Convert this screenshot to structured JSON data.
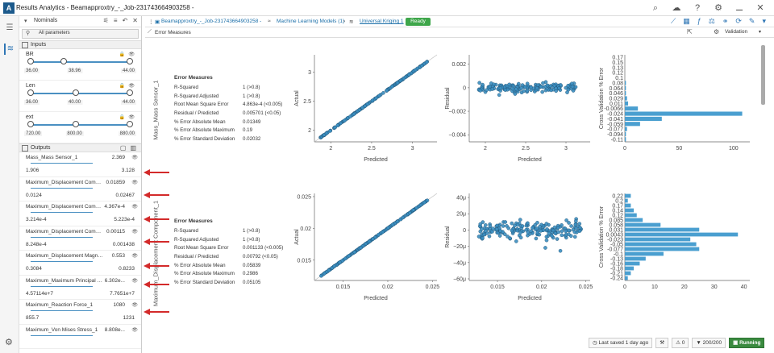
{
  "window": {
    "title": "Results Analytics - Beamapproxtry_-_Job-231743664903258 -"
  },
  "sidebar": {
    "header_label": "Nominals",
    "all_params": "All parameters",
    "inputs_label": "Inputs",
    "outputs_label": "Outputs",
    "inputs": [
      {
        "name": "BR",
        "min": "36.00",
        "cur": "38.96",
        "max": "44.00",
        "frac": 0.37
      },
      {
        "name": "Len",
        "min": "36.00",
        "cur": "40.00",
        "max": "44.00",
        "frac": 0.5
      },
      {
        "name": "ext",
        "min": "720.00",
        "cur": "800.00",
        "max": "880.00",
        "frac": 0.5
      }
    ],
    "outputs": [
      {
        "name": "Mass_Mass Sensor_1",
        "cur": "2.369",
        "min": "1.906",
        "max": "3.128"
      },
      {
        "name": "Maximum_Displacement Compo...",
        "cur": "0.01859",
        "min": "0.0124",
        "max": "0.02467"
      },
      {
        "name": "Maximum_Displacement Compo...",
        "cur": "4.367e-4",
        "min": "3.214e-4",
        "max": "5.223e-4"
      },
      {
        "name": "Maximum_Displacement Compo...",
        "cur": "0.00115",
        "min": "8.248e-4",
        "max": "0.001438"
      },
      {
        "name": "Maximum_Displacement Magnit...",
        "cur": "0.553",
        "min": "0.3084",
        "max": "0.8233"
      },
      {
        "name": "Maximum_Maximum Principal Str...",
        "cur": "6.302e...",
        "min": "4.57114e+7",
        "max": "7.7651e+7"
      },
      {
        "name": "Maximum_Reaction Force_1",
        "cur": "1080",
        "min": "855.7",
        "max": "1231"
      },
      {
        "name": "Maximum_Von Mises Stress_1",
        "cur": "8.808e...",
        "min": "",
        "max": ""
      }
    ]
  },
  "breadcrumb": {
    "job": "Beamapproxtry_-_Job-231743664903258 -",
    "models": "Machine Learning Models (1)",
    "kriging": "Universal Kriging 1",
    "ready": "Ready"
  },
  "subbar": {
    "label": "Error Measures",
    "view": "Validation"
  },
  "status": {
    "saved": "Last saved 1 day ago",
    "zero": "0",
    "count": "200/200",
    "running": "Running"
  },
  "rows": [
    {
      "title": "Mass_Mass Sensor_1",
      "em": {
        "title": "Error Measures",
        "items": [
          {
            "k": "R-Squared",
            "v": "1 (>0.8)"
          },
          {
            "k": "R-Squared Adjusted",
            "v": "1 (>0.8)"
          },
          {
            "k": "Root Mean Square Error",
            "v": "4.863e-4 (<0.005)"
          },
          {
            "k": "Residual / Predicted",
            "v": "0.005701 (<0.05)"
          },
          {
            "k": "% Error Absolute Mean",
            "v": "0.01349"
          },
          {
            "k": "% Error Absolute Maximum",
            "v": "0.19"
          },
          {
            "k": "% Error Standard Deviation",
            "v": "0.02032"
          }
        ]
      },
      "chart_data": [
        {
          "type": "scatter",
          "name": "actual_vs_predicted",
          "xlabel": "Predicted",
          "ylabel": "Actual",
          "xlim": [
            1.8,
            3.3
          ],
          "ylim": [
            1.8,
            3.3
          ],
          "xticks": [
            2,
            2.5,
            3
          ],
          "yticks": [
            2,
            2.5,
            3
          ],
          "diag": true,
          "pattern": "diag"
        },
        {
          "type": "scatter",
          "name": "residual",
          "xlabel": "Predicted",
          "ylabel": "Residual",
          "xlim": [
            1.8,
            3.3
          ],
          "ylim": [
            -0.0046,
            0.0028
          ],
          "xticks": [
            2,
            2.5,
            3
          ],
          "yticks": [
            0.002,
            0,
            -0.002,
            -0.004
          ],
          "ylabels": [
            "0.002",
            "0",
            "−0.002",
            "−0.004"
          ],
          "pattern": "resid1"
        },
        {
          "type": "bar",
          "orientation": "horizontal",
          "xlabel": "",
          "ylabel": "Cross Validation % Error",
          "xlim": [
            0,
            115
          ],
          "xticks": [
            0,
            50,
            100
          ],
          "categories": [
            "0.17",
            "0.15",
            "0.13",
            "0.12",
            "0.1",
            "0.08",
            "0.064",
            "0.046",
            "0.029",
            "0.011",
            "-0.0066",
            "-0.024",
            "-0.041",
            "-0.059",
            "-0.077",
            "-0.094",
            "-0.11"
          ],
          "values": [
            0,
            0,
            0,
            0,
            0,
            1,
            1,
            1,
            2,
            3,
            12,
            108,
            34,
            14,
            2,
            1,
            1
          ]
        }
      ]
    },
    {
      "title": "Maximum_Displacement Component_1",
      "em": {
        "title": "Error Measures",
        "items": [
          {
            "k": "R-Squared",
            "v": "1 (>0.8)"
          },
          {
            "k": "R-Squared Adjusted",
            "v": "1 (>0.8)"
          },
          {
            "k": "Root Mean Square Error",
            "v": "0.001133 (<0.005)"
          },
          {
            "k": "Residual / Predicted",
            "v": "0.00792 (<0.05)"
          },
          {
            "k": "% Error Absolute Mean",
            "v": "0.05839"
          },
          {
            "k": "% Error Absolute Maximum",
            "v": "0.2986"
          },
          {
            "k": "% Error Standard Deviation",
            "v": "0.05105"
          }
        ]
      },
      "chart_data": [
        {
          "type": "scatter",
          "name": "actual_vs_predicted",
          "xlabel": "Predicted",
          "ylabel": "Actual",
          "xlim": [
            0.0118,
            0.0255
          ],
          "ylim": [
            0.0118,
            0.0255
          ],
          "xticks": [
            0.015,
            0.02,
            0.025
          ],
          "yticks": [
            0.015,
            0.02,
            0.025
          ],
          "diag": true,
          "pattern": "diag2"
        },
        {
          "type": "scatter",
          "name": "residual",
          "xlabel": "Predicted",
          "ylabel": "Residual",
          "xlim": [
            0.0118,
            0.0255
          ],
          "ylim": [
            -62,
            45
          ],
          "xticks": [
            0.015,
            0.02,
            0.025
          ],
          "yticks": [
            40,
            20,
            0,
            -20,
            -40,
            -60
          ],
          "ylabels": [
            "40μ",
            "20μ",
            "0",
            "−20μ",
            "−40μ",
            "−60μ"
          ],
          "pattern": "resid2"
        },
        {
          "type": "bar",
          "orientation": "horizontal",
          "xlabel": "",
          "ylabel": "Cross Validation % Error",
          "xlim": [
            0,
            42
          ],
          "xticks": [
            0,
            10,
            20,
            30,
            40
          ],
          "categories": [
            "0.22",
            "0.2",
            "0.17",
            "0.14",
            "0.12",
            "0.085",
            "0.058",
            "0.031",
            "0.0043",
            "-0.023",
            "-0.05",
            "-0.077",
            "-0.1",
            "-0.13",
            "-0.16",
            "-0.18",
            "-0.21",
            "-0.24"
          ],
          "values": [
            2,
            1,
            2,
            3,
            4,
            6,
            12,
            25,
            38,
            22,
            24,
            25,
            13,
            7,
            5,
            3,
            2,
            1
          ]
        }
      ]
    }
  ],
  "colors": {
    "accent": "#2f76b5",
    "point": "#3b8ec0",
    "bar": "#4a9fd0",
    "ready": "#3ea64a",
    "arrow": "#d32a2a"
  }
}
